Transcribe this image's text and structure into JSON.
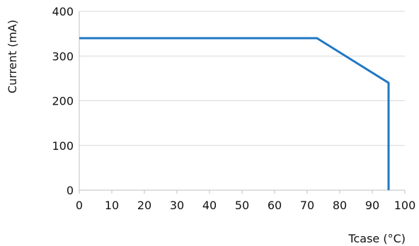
{
  "chart_data": {
    "type": "line",
    "xlabel": "Tcase (°C)",
    "ylabel": "Current (mA)",
    "xlim": [
      0,
      100
    ],
    "ylim": [
      0,
      400
    ],
    "xticks": [
      0,
      10,
      20,
      30,
      40,
      50,
      60,
      70,
      80,
      90,
      100
    ],
    "yticks": [
      0,
      100,
      200,
      300,
      400
    ],
    "grid": "horizontal",
    "legend": "none",
    "series": [
      {
        "color": "#1f77c4",
        "x": [
          0,
          73,
          95,
          95
        ],
        "y": [
          340,
          340,
          240,
          0
        ]
      }
    ]
  }
}
